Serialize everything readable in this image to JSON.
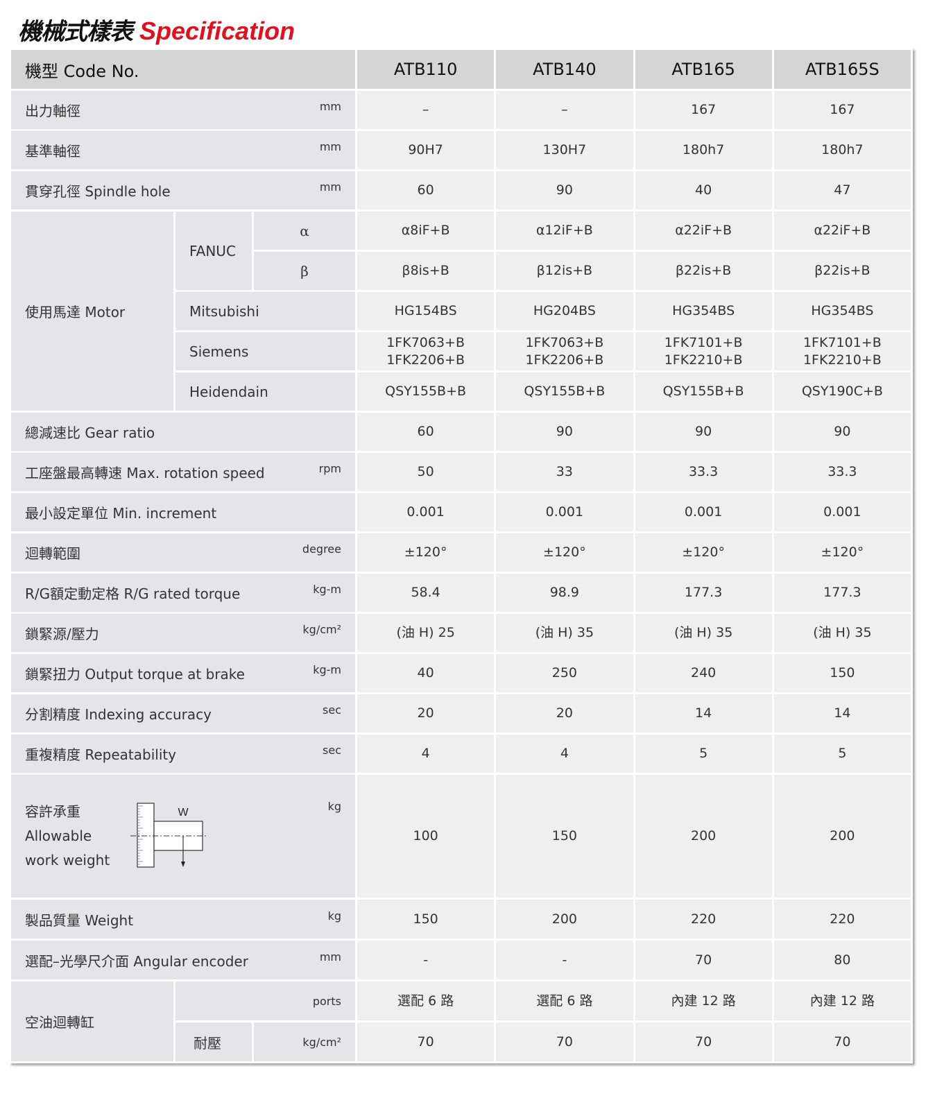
{
  "title": {
    "zh": "機械式樣表",
    "en": "Specification"
  },
  "header": {
    "label": "機型 Code No.",
    "models": [
      "ATB110",
      "ATB140",
      "ATB165",
      "ATB165S"
    ]
  },
  "rows_top": [
    {
      "label": "出力軸徑",
      "unit": "mm",
      "values": [
        "–",
        "–",
        "167",
        "167"
      ]
    },
    {
      "label": "基準軸徑",
      "unit": "mm",
      "values": [
        "90H7",
        "130H7",
        "180h7",
        "180h7"
      ]
    },
    {
      "label": "貫穿孔徑  Spindle hole",
      "unit": "mm",
      "values": [
        "60",
        "90",
        "40",
        "47"
      ]
    }
  ],
  "motor": {
    "label": "使用馬達 Motor",
    "fanuc": {
      "brand": "FANUC",
      "alpha": {
        "symbol": "α",
        "values": [
          "α8iF+B",
          "α12iF+B",
          "α22iF+B",
          "α22iF+B"
        ]
      },
      "beta": {
        "symbol": "β",
        "values": [
          "β8is+B",
          "β12is+B",
          "β22is+B",
          "β22is+B"
        ]
      }
    },
    "others": [
      {
        "brand": "Mitsubishi",
        "values": [
          "HG154BS",
          "HG204BS",
          "HG354BS",
          "HG354BS"
        ]
      },
      {
        "brand": "Siemens",
        "values": [
          "1FK7063+B\n1FK2206+B",
          "1FK7063+B\n1FK2206+B",
          "1FK7101+B\n1FK2210+B",
          "1FK7101+B\n1FK2210+B"
        ]
      },
      {
        "brand": "Heidendain",
        "values": [
          "QSY155B+B",
          "QSY155B+B",
          "QSY155B+B",
          "QSY190C+B"
        ]
      }
    ]
  },
  "rows_mid": [
    {
      "label": "總減速比 Gear ratio",
      "unit": "",
      "values": [
        "60",
        "90",
        "90",
        "90"
      ]
    },
    {
      "label": "工座盤最高轉速 Max. rotation speed",
      "unit": "rpm",
      "values": [
        "50",
        "33",
        "33.3",
        "33.3"
      ]
    },
    {
      "label": "最小設定單位 Min. increment",
      "unit": "",
      "values": [
        "0.001",
        "0.001",
        "0.001",
        "0.001"
      ]
    },
    {
      "label": "迴轉範圍",
      "unit": "degree",
      "values": [
        "±120°",
        "±120°",
        "±120°",
        "±120°"
      ]
    },
    {
      "label": "R/G額定動定格  R/G rated torque",
      "unit": "kg-m",
      "values": [
        "58.4",
        "98.9",
        "177.3",
        "177.3"
      ]
    },
    {
      "label": "鎖緊源/壓力",
      "unit": "kg/cm²",
      "values": [
        "(油 H) 25",
        "(油 H) 35",
        "(油 H) 35",
        "(油 H) 35"
      ]
    },
    {
      "label": "鎖緊扭力  Output torque at brake",
      "unit": "kg-m",
      "values": [
        "40",
        "250",
        "240",
        "150"
      ]
    },
    {
      "label": "分割精度 Indexing accuracy",
      "unit": "sec",
      "values": [
        "20",
        "20",
        "14",
        "14"
      ]
    },
    {
      "label": "重複精度 Repeatability",
      "unit": "sec",
      "values": [
        "4",
        "4",
        "5",
        "5"
      ]
    }
  ],
  "work_weight": {
    "label_lines": [
      "容許承重",
      "Allowable",
      "work weight"
    ],
    "diagram_label": "W",
    "unit": "kg",
    "values": [
      "100",
      "150",
      "200",
      "200"
    ]
  },
  "rows_bottom": [
    {
      "label": "製品質量 Weight",
      "unit": "kg",
      "values": [
        "150",
        "200",
        "220",
        "220"
      ]
    },
    {
      "label": "選配–光學尺介面 Angular encoder",
      "unit": "mm",
      "values": [
        "-",
        "-",
        "70",
        "80"
      ]
    }
  ],
  "rotary_joint": {
    "label": "空油迴轉缸",
    "ports": {
      "unit": "ports",
      "values": [
        "選配 6 路",
        "選配 6 路",
        "內建 12 路",
        "內建 12 路"
      ]
    },
    "pressure": {
      "label": "耐壓",
      "unit": "kg/cm²",
      "values": [
        "70",
        "70",
        "70",
        "70"
      ]
    }
  },
  "colors": {
    "title_accent": "#e0101e",
    "header_bg": "#d5d5d5",
    "label_bg": "#e5e5e7",
    "value_bg": "#efefef"
  }
}
